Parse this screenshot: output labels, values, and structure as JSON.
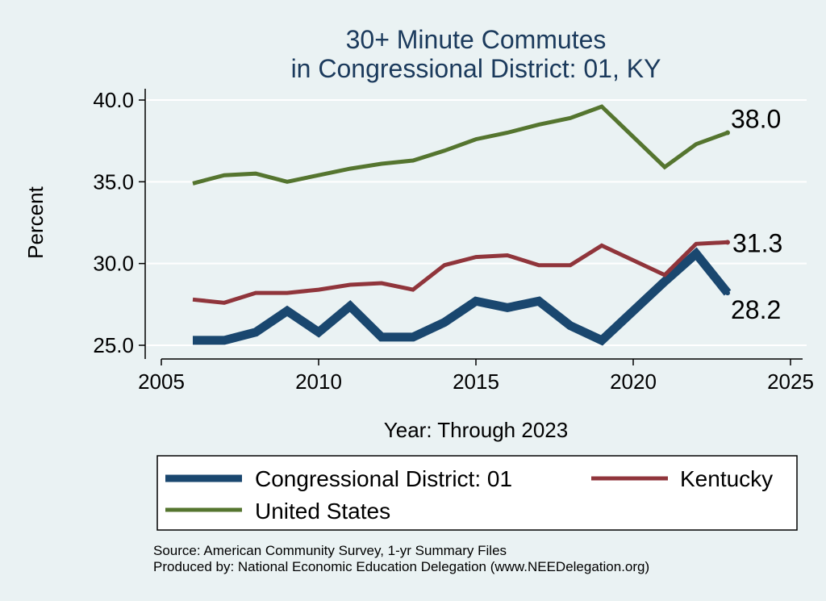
{
  "chart_data": {
    "type": "line",
    "title": "30+ Minute Commutes",
    "subtitle": "in Congressional District:  01, KY",
    "xlabel": "Year: Through 2023",
    "ylabel": "Percent",
    "xlim": [
      2005,
      2025
    ],
    "ylim": [
      25,
      40
    ],
    "xticks": [
      2005,
      2010,
      2015,
      2020,
      2025
    ],
    "yticks": [
      25,
      30,
      35,
      40
    ],
    "ytick_labels": [
      "25.0",
      "30.0",
      "35.0",
      "40.0"
    ],
    "grid": true,
    "series": [
      {
        "name": "Congressional District:  01",
        "color": "#1a476f",
        "x": [
          2006,
          2007,
          2008,
          2009,
          2010,
          2011,
          2012,
          2013,
          2014,
          2015,
          2016,
          2017,
          2018,
          2019,
          2021,
          2022,
          2023
        ],
        "values": [
          25.3,
          25.3,
          25.8,
          27.1,
          25.8,
          27.4,
          25.5,
          25.5,
          26.4,
          27.7,
          27.3,
          27.7,
          26.2,
          25.3,
          28.9,
          30.6,
          28.2
        ],
        "end_label": "28.2"
      },
      {
        "name": "Kentucky",
        "color": "#90353b",
        "x": [
          2006,
          2007,
          2008,
          2009,
          2010,
          2011,
          2012,
          2013,
          2014,
          2015,
          2016,
          2017,
          2018,
          2019,
          2021,
          2022,
          2023
        ],
        "values": [
          27.8,
          27.6,
          28.2,
          28.2,
          28.4,
          28.7,
          28.8,
          28.4,
          29.9,
          30.4,
          30.5,
          29.9,
          29.9,
          31.1,
          29.3,
          31.2,
          31.3
        ],
        "end_label": "31.3"
      },
      {
        "name": "United States",
        "color": "#55752f",
        "x": [
          2006,
          2007,
          2008,
          2009,
          2010,
          2011,
          2012,
          2013,
          2014,
          2015,
          2016,
          2017,
          2018,
          2019,
          2021,
          2022,
          2023
        ],
        "values": [
          34.9,
          35.4,
          35.5,
          35.0,
          35.4,
          35.8,
          36.1,
          36.3,
          36.9,
          37.6,
          38.0,
          38.5,
          38.9,
          39.6,
          35.9,
          37.3,
          38.0
        ],
        "end_label": "38.0"
      }
    ],
    "legend": {
      "placement": "bottom",
      "entries": [
        "Congressional District:  01",
        "Kentucky",
        "United States"
      ]
    }
  },
  "source": {
    "line1": "Source: American Community Survey, 1-yr Summary Files",
    "line2": "Produced by: National Economic Education Delegation (www.NEEDelegation.org)"
  }
}
